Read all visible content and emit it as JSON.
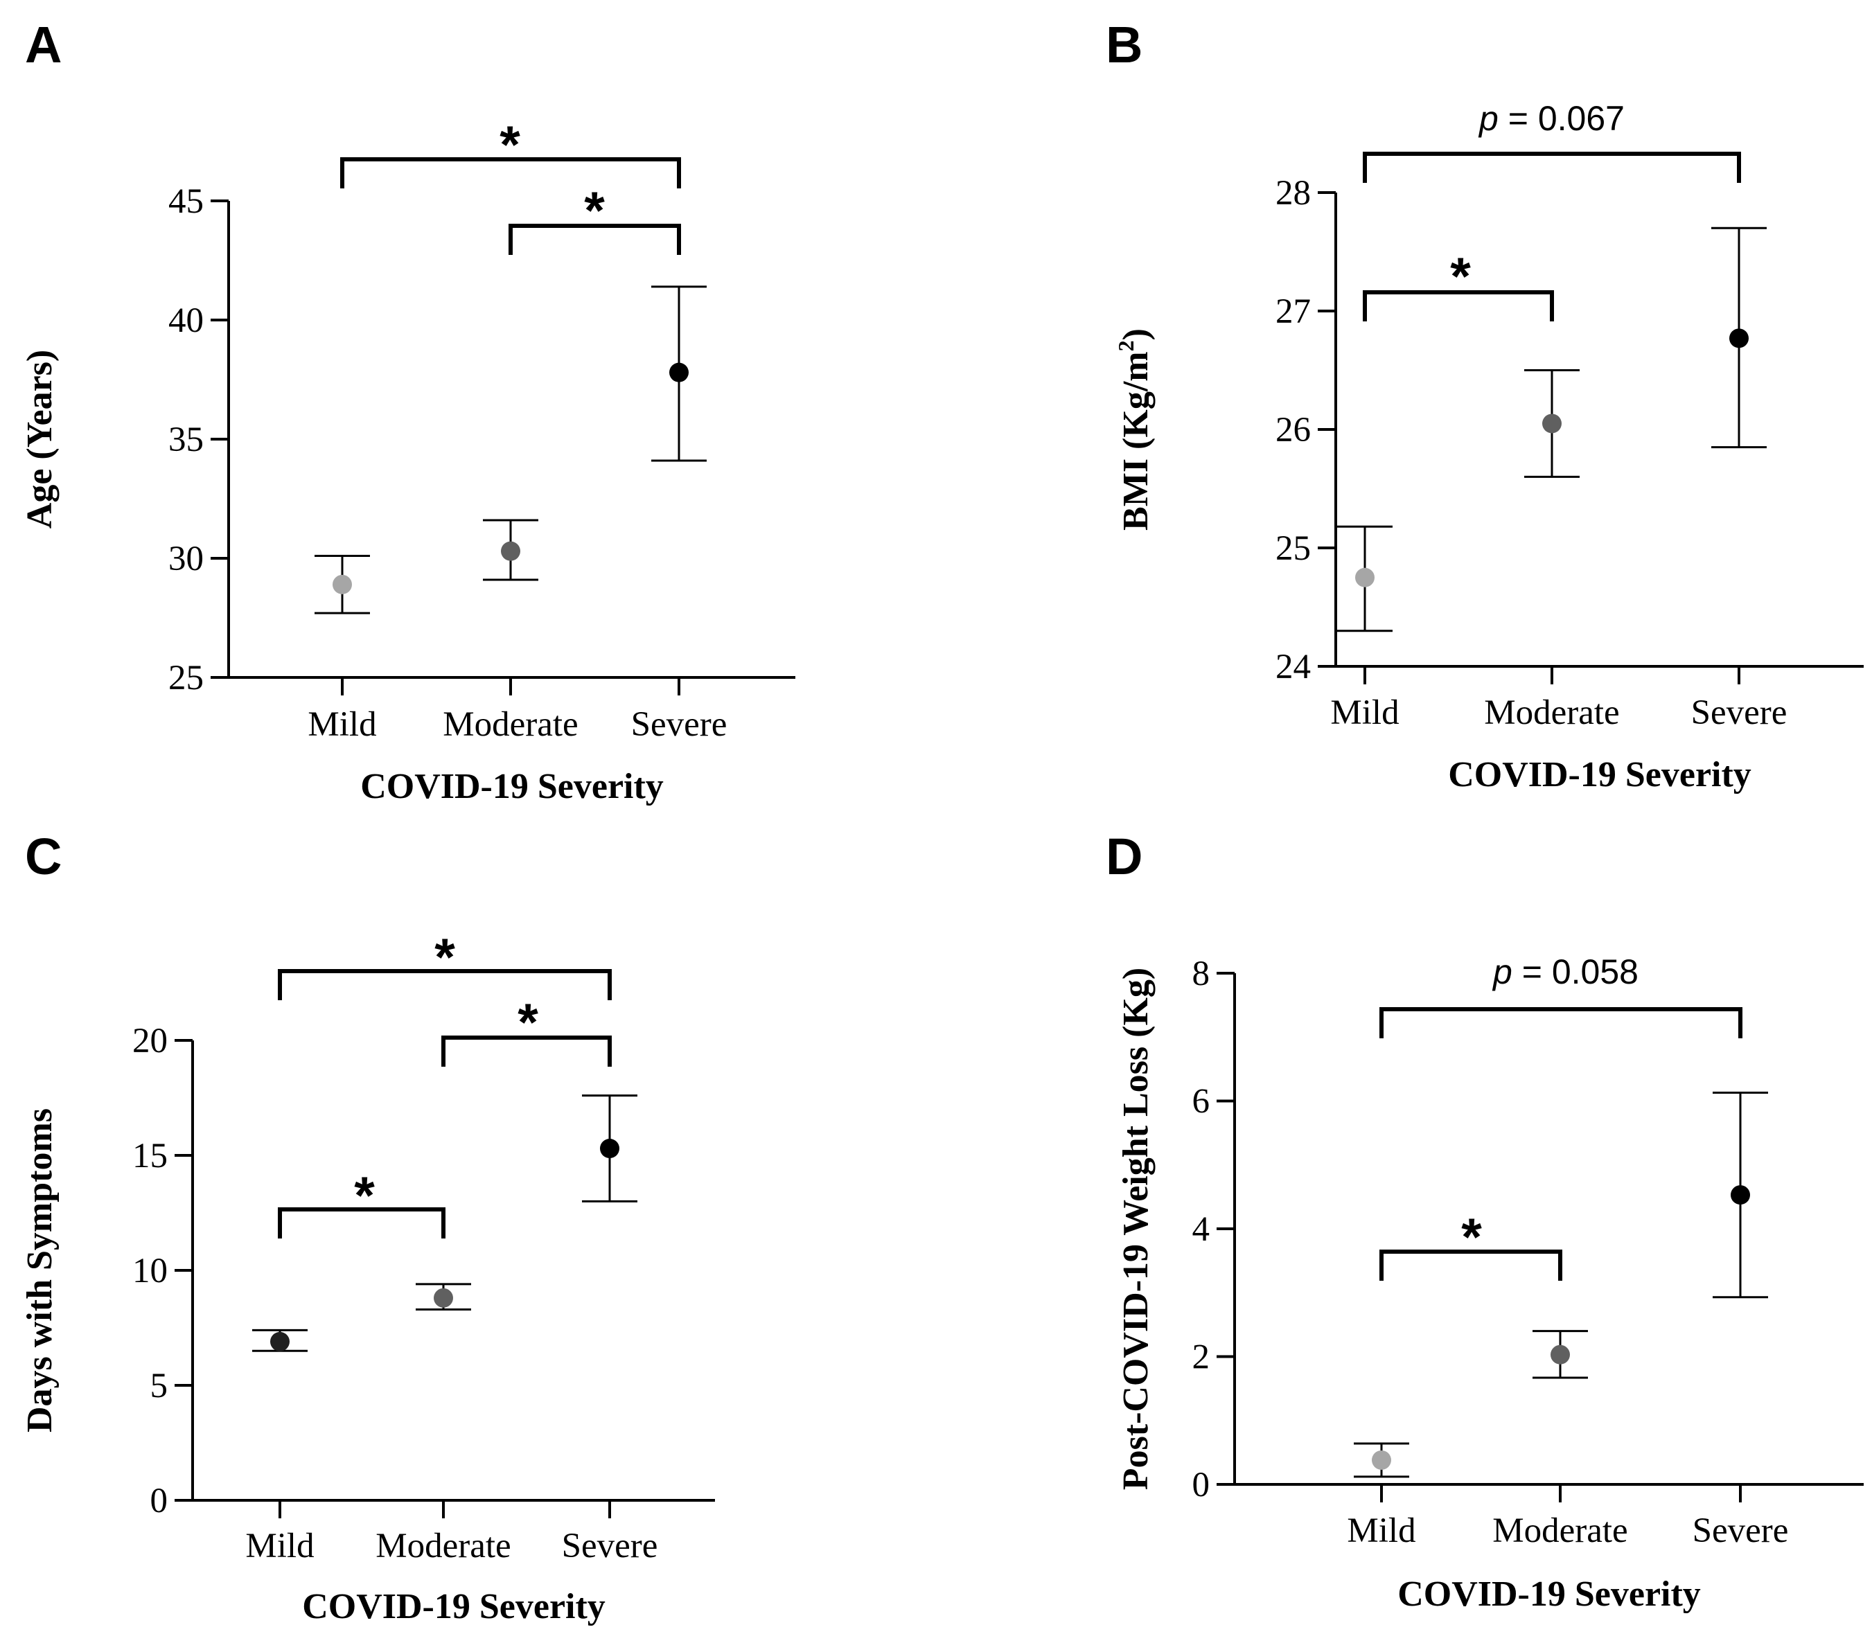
{
  "chart_data": [
    {
      "panel": "A",
      "type": "scatter",
      "xlabel": "COVID-19 Severity",
      "ylabel": "Age (Years)",
      "categories": [
        "Mild",
        "Moderate",
        "Severe"
      ],
      "ylim": [
        25,
        45
      ],
      "yticks": [
        "25",
        "30",
        "35",
        "40",
        "45"
      ],
      "yticks_values": [
        25,
        30,
        35,
        40,
        45
      ],
      "values": [
        28.9,
        30.3,
        37.8
      ],
      "error_low": [
        27.7,
        29.1,
        34.1
      ],
      "error_high": [
        30.1,
        31.6,
        41.4
      ],
      "point_colors": [
        "#a6a6a6",
        "#606060",
        "#000000"
      ],
      "comparisons": [
        {
          "from": 0,
          "to": 2,
          "label": "*"
        },
        {
          "from": 1,
          "to": 2,
          "label": "*"
        }
      ]
    },
    {
      "panel": "B",
      "type": "scatter",
      "xlabel": "COVID-19 Severity",
      "ylabel": "BMI (Kg/m",
      "ylabel_sup": "2",
      "ylabel_end": ")",
      "categories": [
        "Mild",
        "Moderate",
        "Severe"
      ],
      "ylim": [
        24,
        28
      ],
      "yticks": [
        "24",
        "25",
        "26",
        "27",
        "28"
      ],
      "yticks_values": [
        24,
        25,
        26,
        27,
        28
      ],
      "values": [
        24.75,
        26.05,
        26.77
      ],
      "error_low": [
        24.3,
        25.6,
        25.85
      ],
      "error_high": [
        25.18,
        26.5,
        27.7
      ],
      "point_colors": [
        "#a6a6a6",
        "#606060",
        "#000000"
      ],
      "comparisons": [
        {
          "from": 0,
          "to": 2,
          "label": "p = 0.067",
          "p_symbol": "p",
          "p_rest": " = 0.067"
        },
        {
          "from": 0,
          "to": 1,
          "label": "*"
        }
      ]
    },
    {
      "panel": "C",
      "type": "scatter",
      "xlabel": "COVID-19 Severity",
      "ylabel": "Days with Symptoms",
      "categories": [
        "Mild",
        "Moderate",
        "Severe"
      ],
      "ylim": [
        0,
        20
      ],
      "yticks": [
        "0",
        "5",
        "10",
        "15",
        "20"
      ],
      "yticks_values": [
        0,
        5,
        10,
        15,
        20
      ],
      "values": [
        6.9,
        8.8,
        15.3
      ],
      "error_low": [
        6.5,
        8.3,
        13.0
      ],
      "error_high": [
        7.4,
        9.4,
        17.6
      ],
      "point_colors": [
        "#202020",
        "#606060",
        "#000000"
      ],
      "comparisons": [
        {
          "from": 0,
          "to": 2,
          "label": "*"
        },
        {
          "from": 1,
          "to": 2,
          "label": "*"
        },
        {
          "from": 0,
          "to": 1,
          "label": "*"
        }
      ]
    },
    {
      "panel": "D",
      "type": "scatter",
      "xlabel": "COVID-19 Severity",
      "ylabel": "Post-COVID-19 Weight Loss (Kg)",
      "categories": [
        "Mild",
        "Moderate",
        "Severe"
      ],
      "ylim": [
        0,
        8
      ],
      "yticks": [
        "0",
        "2",
        "4",
        "6",
        "8"
      ],
      "yticks_values": [
        0,
        2,
        4,
        6,
        8
      ],
      "values": [
        0.38,
        2.03,
        4.53
      ],
      "error_low": [
        0.12,
        1.67,
        2.93
      ],
      "error_high": [
        0.64,
        2.4,
        6.13
      ],
      "point_colors": [
        "#a6a6a6",
        "#606060",
        "#000000"
      ],
      "comparisons": [
        {
          "from": 0,
          "to": 2,
          "label": "p = 0.058",
          "p_symbol": "p",
          "p_rest": " = 0.058"
        },
        {
          "from": 0,
          "to": 1,
          "label": "*"
        }
      ]
    }
  ]
}
